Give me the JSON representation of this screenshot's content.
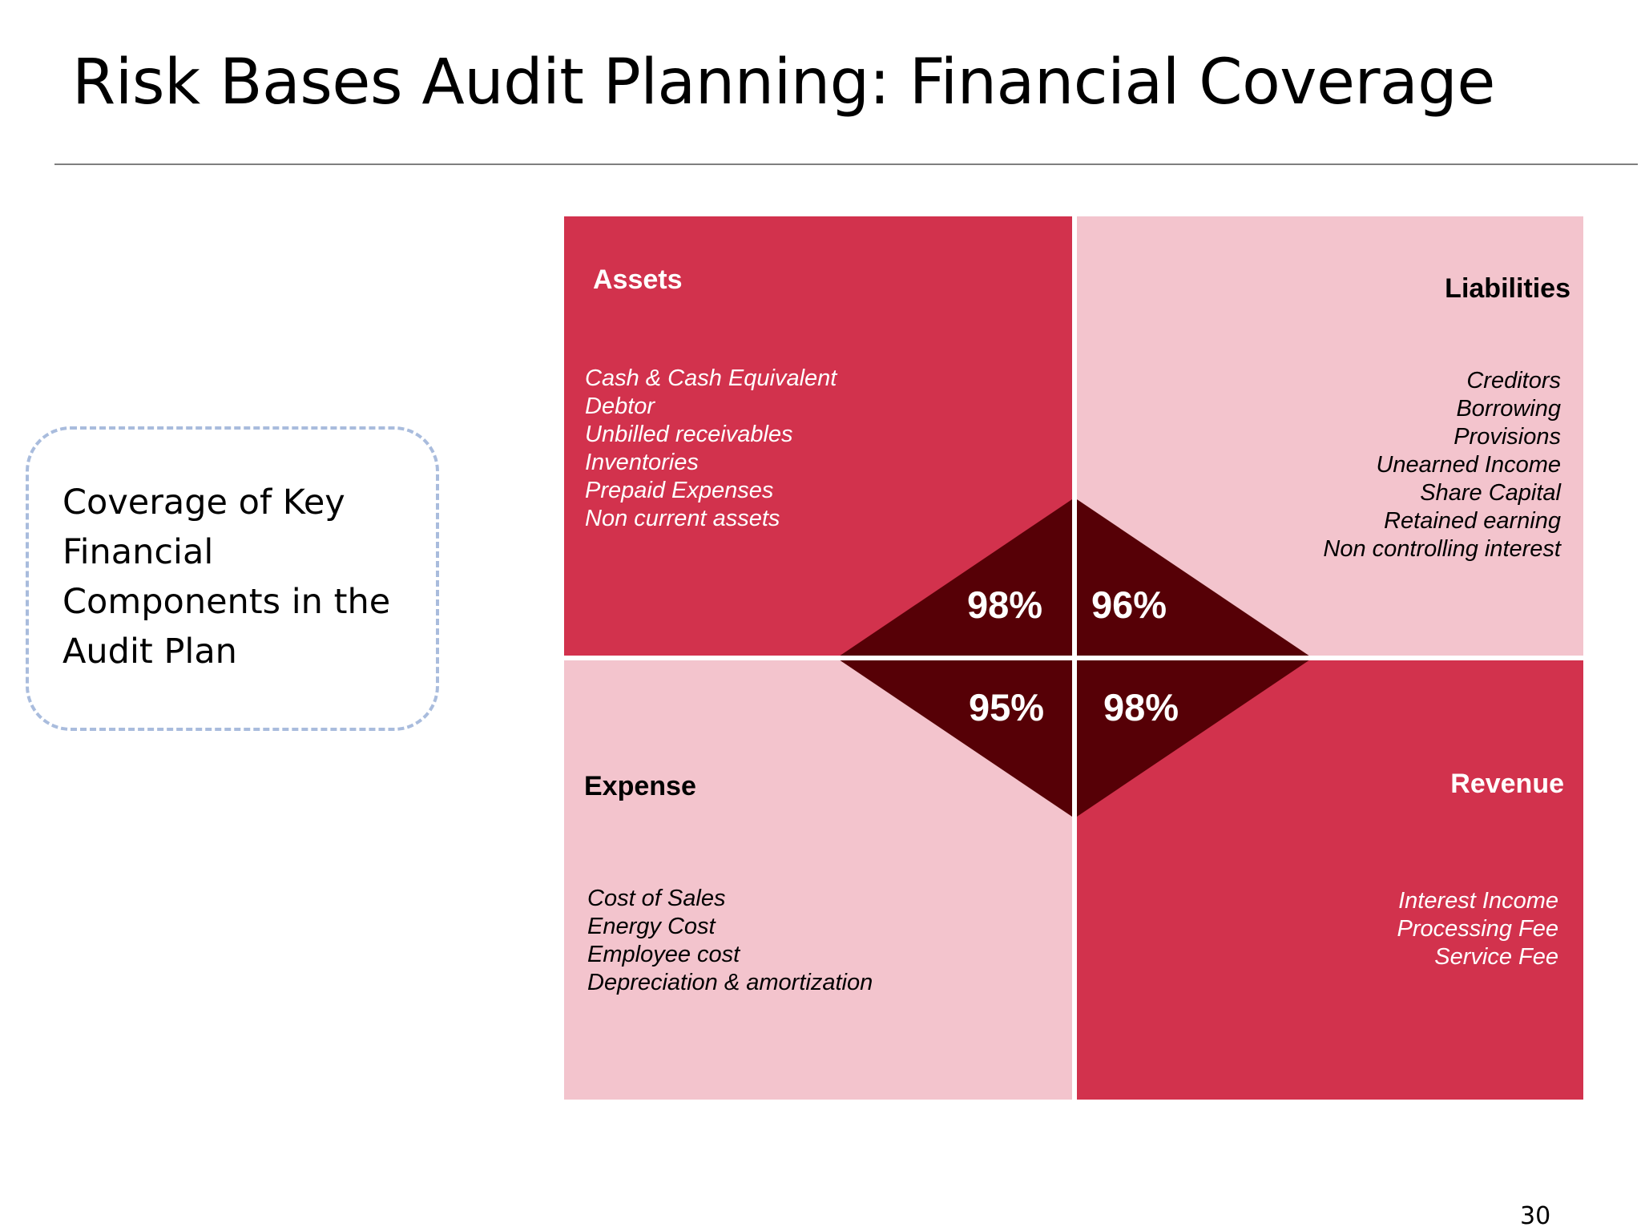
{
  "slide": {
    "title": "Risk Bases Audit Planning: Financial Coverage",
    "note": "Coverage of Key Financial Components in the Audit Plan",
    "page_number": "30"
  },
  "colors": {
    "strong_red": "#d2304d",
    "light_pink": "#f3c4cd",
    "dark_maroon": "#560006",
    "divider": "#ffffff",
    "note_border": "#a9bcdd"
  },
  "quadrants": {
    "assets": {
      "title": "Assets",
      "percent": "98%",
      "items": [
        "Cash & Cash Equivalent",
        "Debtor",
        "Unbilled receivables",
        "Inventories",
        "Prepaid Expenses",
        "Non current assets"
      ]
    },
    "liabilities": {
      "title": "Liabilities",
      "percent": "96%",
      "items": [
        "Creditors",
        "Borrowing",
        "Provisions",
        "Unearned Income",
        "Share Capital",
        "Retained earning",
        "Non controlling interest"
      ]
    },
    "expense": {
      "title": "Expense",
      "percent": "95%",
      "items": [
        "Cost of Sales",
        "Energy Cost",
        "Employee cost",
        "Depreciation & amortization"
      ]
    },
    "revenue": {
      "title": "Revenue",
      "percent": "98%",
      "items": [
        "Interest Income",
        "Processing Fee",
        "Service Fee"
      ]
    }
  }
}
